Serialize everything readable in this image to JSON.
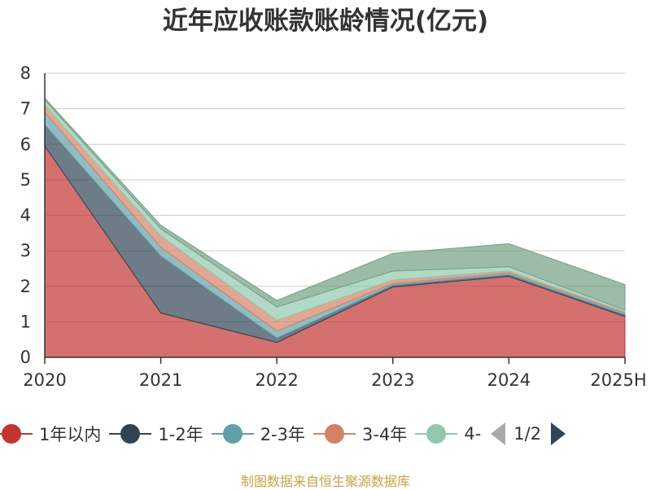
{
  "chart_data": {
    "type": "area",
    "stacked": true,
    "title": "近年应收账款账龄情况(亿元)",
    "categories": [
      "2020",
      "2021",
      "2022",
      "2023",
      "2024",
      "2025H"
    ],
    "ylim": [
      0,
      8
    ],
    "yticks": [
      "0",
      "1",
      "2",
      "3",
      "4",
      "5",
      "6",
      "7",
      "8"
    ],
    "grid": true,
    "series": [
      {
        "name": "1年以内",
        "color": "#c23531",
        "values": [
          5.95,
          1.25,
          0.42,
          1.98,
          2.28,
          1.15
        ]
      },
      {
        "name": "1-2年",
        "color": "#2f4554",
        "values": [
          0.6,
          1.6,
          0.12,
          0.05,
          0.05,
          0.05
        ]
      },
      {
        "name": "2-3年",
        "color": "#61a0a8",
        "values": [
          0.35,
          0.25,
          0.2,
          0.05,
          0.05,
          0.05
        ]
      },
      {
        "name": "3-4年",
        "color": "#d48265",
        "values": [
          0.2,
          0.32,
          0.3,
          0.1,
          0.05,
          0.03
        ]
      },
      {
        "name": "4-",
        "color": "#91c7ae",
        "values": [
          0.15,
          0.2,
          0.38,
          0.25,
          0.12,
          0.05
        ]
      },
      {
        "name": "",
        "color": "#749f83",
        "values": [
          0.05,
          0.1,
          0.18,
          0.5,
          0.65,
          0.72
        ]
      }
    ]
  },
  "legend": {
    "page": "1/2"
  },
  "source": "制图数据来自恒生聚源数据库"
}
